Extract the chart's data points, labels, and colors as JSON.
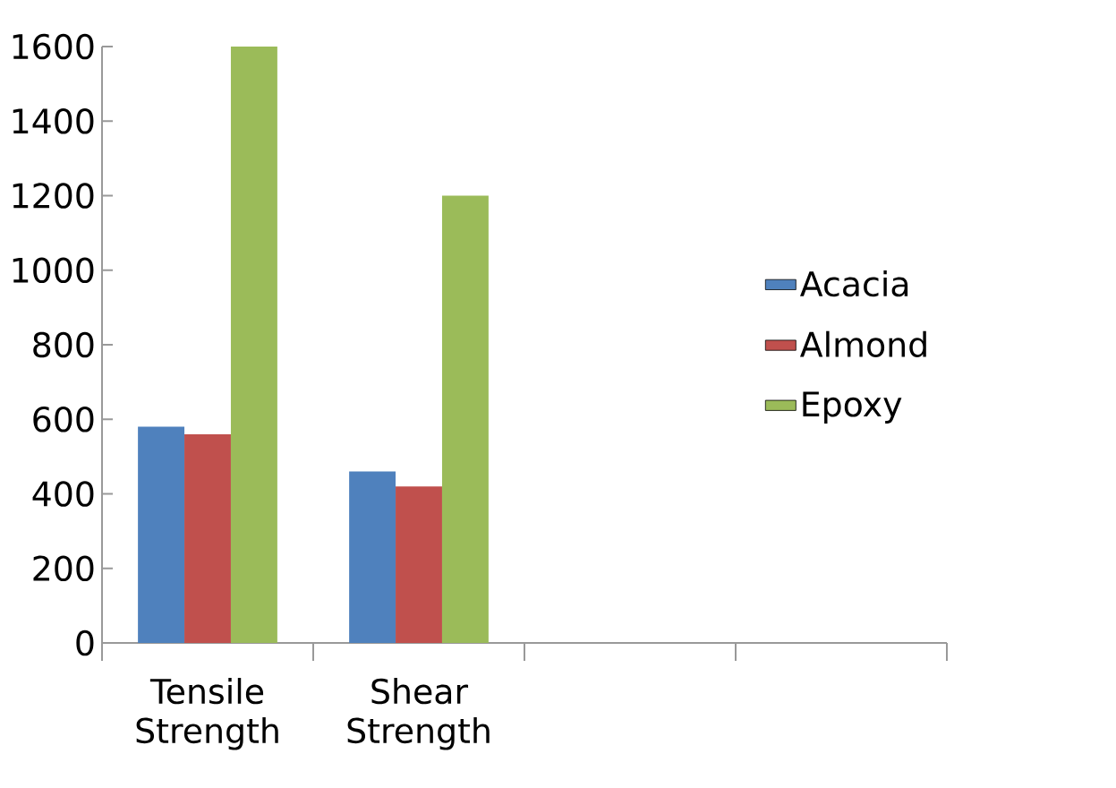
{
  "chart_data": {
    "type": "bar",
    "categories": [
      "Tensile Strength",
      "Shear Strength",
      null,
      null
    ],
    "series": [
      {
        "name": "Acacia",
        "color": "#4f81bd",
        "values": [
          580,
          460,
          null,
          null
        ]
      },
      {
        "name": "Almond",
        "color": "#c0504d",
        "values": [
          560,
          420,
          null,
          null
        ]
      },
      {
        "name": "Epoxy",
        "color": "#9bbb59",
        "values": [
          1600,
          1200,
          null,
          null
        ]
      }
    ],
    "ylim": [
      0,
      1600
    ],
    "yticks": [
      0,
      200,
      400,
      600,
      800,
      1000,
      1200,
      1400,
      1600
    ],
    "legend": "right",
    "grid": false
  }
}
